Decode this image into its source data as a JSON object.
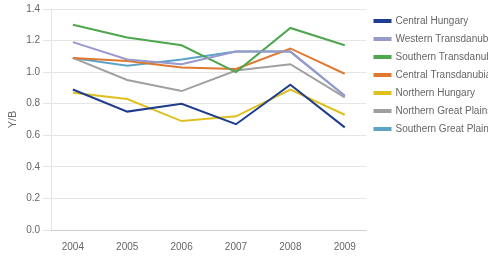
{
  "chart_data": {
    "type": "line",
    "x": [
      2004,
      2005,
      2006,
      2007,
      2008,
      2009
    ],
    "series": [
      {
        "name": "Central Hungary",
        "color": "#1F3D8C",
        "values": [
          0.89,
          0.75,
          0.8,
          0.67,
          0.92,
          0.65
        ]
      },
      {
        "name": "Western Transdanubia",
        "color": "#9999CC",
        "values": [
          1.19,
          1.08,
          1.05,
          1.13,
          1.13,
          0.85
        ]
      },
      {
        "name": "Southern Transdanubia",
        "color": "#4EA64E",
        "values": [
          1.3,
          1.22,
          1.17,
          1.0,
          1.28,
          1.17
        ]
      },
      {
        "name": "Central Transdanubia",
        "color": "#E07830",
        "values": [
          1.09,
          1.07,
          1.03,
          1.02,
          1.15,
          0.99
        ]
      },
      {
        "name": "Northern Hungary",
        "color": "#E0C020",
        "values": [
          0.87,
          0.83,
          0.69,
          0.72,
          0.89,
          0.73
        ]
      },
      {
        "name": "Northern Great Plains",
        "color": "#A0A0A0",
        "values": [
          1.09,
          0.95,
          0.88,
          1.01,
          1.05,
          0.84
        ]
      },
      {
        "name": "Southern Great Plains",
        "color": "#5BA3C9",
        "values": [
          1.09,
          1.04,
          1.08,
          1.13,
          1.13,
          0.85
        ]
      }
    ],
    "y_label": "Y/B",
    "xlim": [
      2003.6,
      2009.4
    ],
    "xticks": [
      2004,
      2005,
      2006,
      2007,
      2008,
      2009
    ],
    "ylim": [
      0,
      1.4
    ],
    "yticks": [
      {
        "value": 0,
        "label": "0.0"
      },
      0.2,
      0.4,
      0.6,
      0.8,
      {
        "value": 1.0,
        "label": "1.0"
      },
      1.2,
      1.4
    ],
    "grid": "y",
    "legend": "right"
  }
}
